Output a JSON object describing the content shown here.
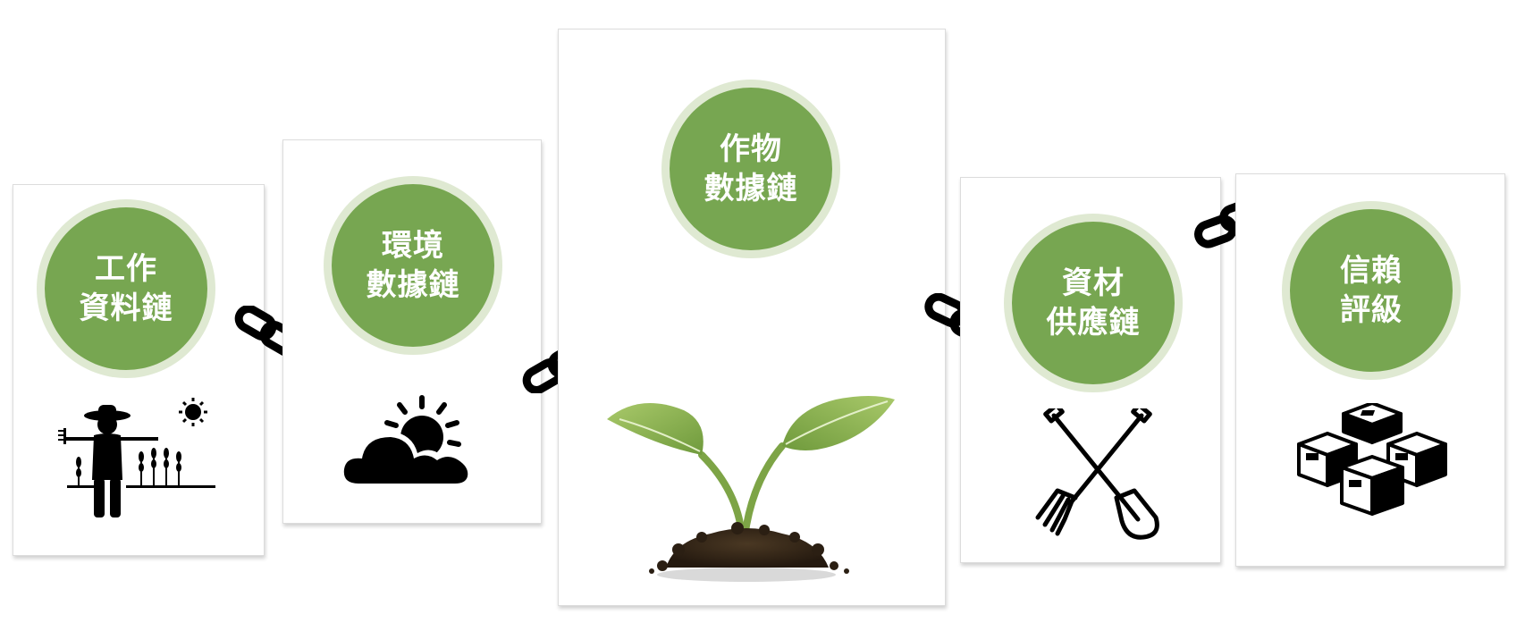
{
  "nodes": [
    {
      "id": "work",
      "line1": "工作",
      "line2": "資料鏈",
      "icon": "farmer-icon"
    },
    {
      "id": "env",
      "line1": "環境",
      "line2": "數據鏈",
      "icon": "weather-icon"
    },
    {
      "id": "crop",
      "line1": "作物",
      "line2": "數據鏈",
      "icon": "seedling-icon"
    },
    {
      "id": "material",
      "line1": "資材",
      "line2": "供應鏈",
      "icon": "tools-icon"
    },
    {
      "id": "trust",
      "line1": "信賴",
      "line2": "評級",
      "icon": "boxes-icon"
    }
  ],
  "connector_icon": "chain-link-icon",
  "colors": {
    "badge": "#77a651",
    "badge_ring": "#dfe9d2",
    "icon": "#000000",
    "leaf": "#8cb552",
    "soil": "#3b2c1c"
  }
}
